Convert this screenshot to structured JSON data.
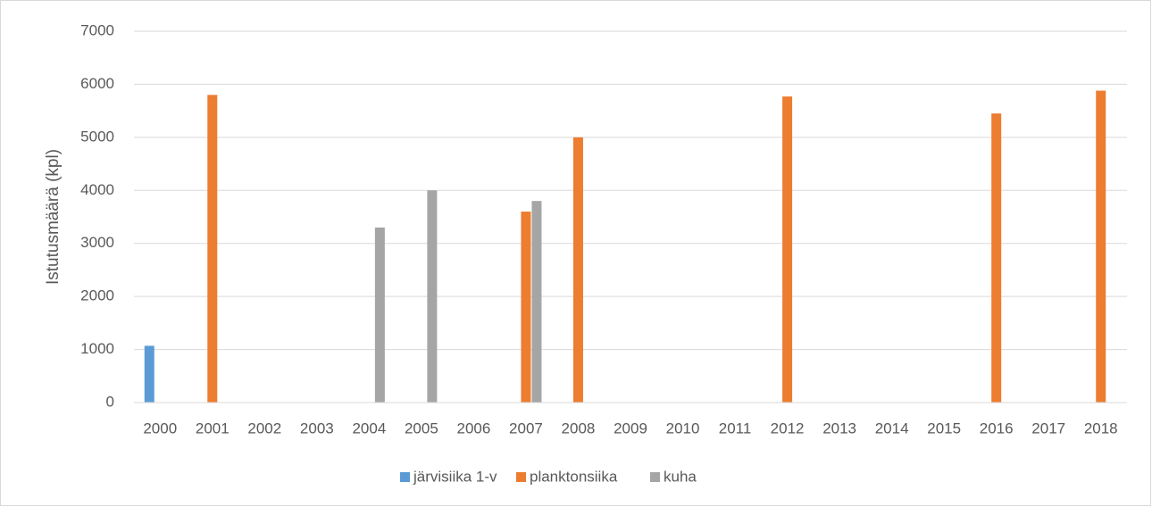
{
  "chart_data": {
    "type": "bar",
    "y_label": "Istutusmäärä (kpl)",
    "categories": [
      "2000",
      "2001",
      "2002",
      "2003",
      "2004",
      "2005",
      "2006",
      "2007",
      "2008",
      "2009",
      "2010",
      "2011",
      "2012",
      "2013",
      "2014",
      "2015",
      "2016",
      "2017",
      "2018"
    ],
    "series": [
      {
        "name": "järvisiika 1-v",
        "color": "#5b9bd5",
        "values": [
          1070,
          null,
          null,
          null,
          null,
          null,
          null,
          null,
          null,
          null,
          null,
          null,
          null,
          null,
          null,
          null,
          null,
          null,
          null
        ]
      },
      {
        "name": "planktonsiika",
        "color": "#ed7d31",
        "values": [
          null,
          5800,
          null,
          null,
          null,
          null,
          null,
          3600,
          5000,
          null,
          null,
          null,
          5770,
          null,
          null,
          null,
          5450,
          null,
          5880
        ]
      },
      {
        "name": "kuha",
        "color": "#a5a5a5",
        "values": [
          null,
          null,
          null,
          null,
          3300,
          4000,
          null,
          3800,
          null,
          null,
          null,
          null,
          null,
          null,
          null,
          null,
          null,
          null,
          null
        ]
      }
    ],
    "ylim": [
      0,
      7000
    ],
    "yticks": [
      0,
      1000,
      2000,
      3000,
      4000,
      5000,
      6000,
      7000
    ],
    "grid": true,
    "legend": "bottom"
  }
}
